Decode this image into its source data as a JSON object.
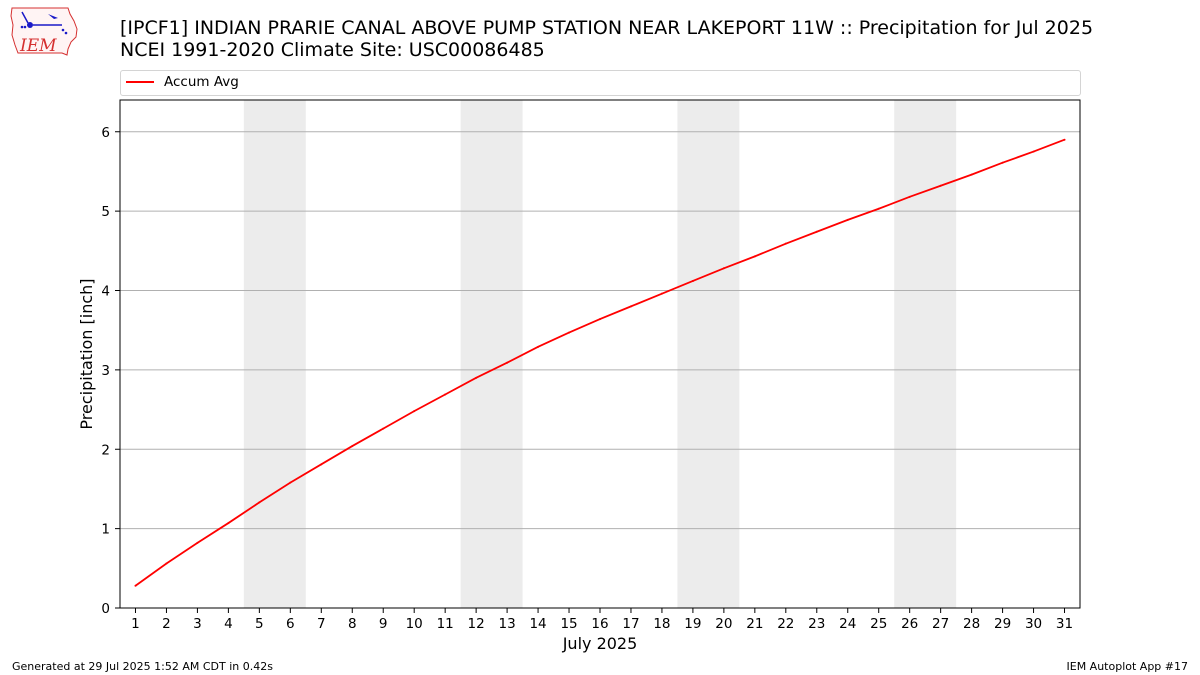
{
  "header": {
    "title_line1": "[IPCF1] INDIAN PRARIE CANAL ABOVE PUMP STATION NEAR LAKEPORT 11W :: Precipitation for Jul 2025",
    "title_line2": "NCEI 1991-2020 Climate Site: USC00086485"
  },
  "logo": {
    "text": "IEM",
    "icon": "iem-iowa-logo"
  },
  "footer": {
    "left": "Generated at 29 Jul 2025 1:52 AM CDT in 0.42s",
    "right": "IEM Autoplot App #17"
  },
  "colors": {
    "series": "#ff0000",
    "weekend_band": "#ececec",
    "grid": "#b0b0b0"
  },
  "chart_data": {
    "type": "line",
    "title": "[IPCF1] INDIAN PRARIE CANAL ABOVE PUMP STATION NEAR LAKEPORT 11W :: Precipitation for Jul 2025",
    "subtitle": "NCEI 1991-2020 Climate Site: USC00086485",
    "xlabel": "July 2025",
    "ylabel": "Precipitation [inch]",
    "xlim": [
      0.5,
      31.5
    ],
    "ylim": [
      0,
      6.4
    ],
    "yticks": [
      0,
      1,
      2,
      3,
      4,
      5,
      6
    ],
    "x": [
      1,
      2,
      3,
      4,
      5,
      6,
      7,
      8,
      9,
      10,
      11,
      12,
      13,
      14,
      15,
      16,
      17,
      18,
      19,
      20,
      21,
      22,
      23,
      24,
      25,
      26,
      27,
      28,
      29,
      30,
      31
    ],
    "xtick_labels": [
      "1",
      "2",
      "3",
      "4",
      "5",
      "6",
      "7",
      "8",
      "9",
      "10",
      "11",
      "12",
      "13",
      "14",
      "15",
      "16",
      "17",
      "18",
      "19",
      "20",
      "21",
      "22",
      "23",
      "24",
      "25",
      "26",
      "27",
      "28",
      "29",
      "30",
      "31"
    ],
    "series": [
      {
        "name": "Accum Avg",
        "color": "#ff0000",
        "values": [
          0.28,
          0.56,
          0.82,
          1.07,
          1.33,
          1.58,
          1.81,
          2.04,
          2.26,
          2.48,
          2.69,
          2.9,
          3.09,
          3.29,
          3.47,
          3.64,
          3.8,
          3.96,
          4.12,
          4.28,
          4.43,
          4.59,
          4.74,
          4.89,
          5.03,
          5.18,
          5.32,
          5.46,
          5.61,
          5.75,
          5.9
        ]
      }
    ],
    "shaded_day_ranges": [
      [
        5,
        6
      ],
      [
        12,
        13
      ],
      [
        19,
        20
      ],
      [
        26,
        27
      ]
    ],
    "grid": "y",
    "legend": "top"
  }
}
